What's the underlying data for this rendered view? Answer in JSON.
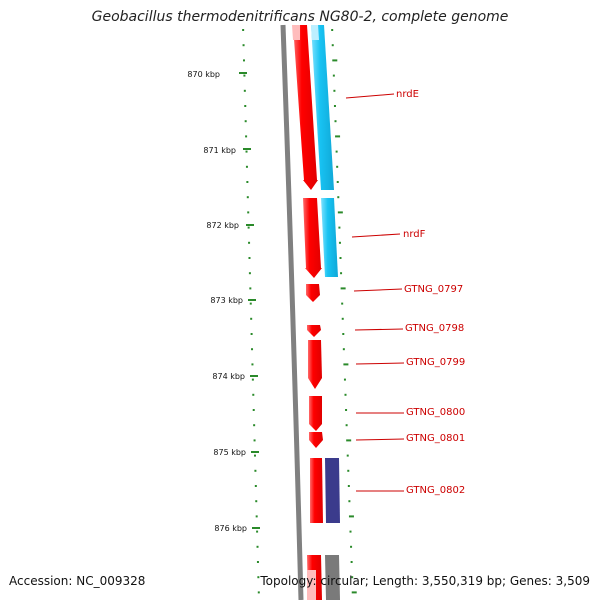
{
  "title": "Geobacillus thermodenitrificans NG80-2, complete genome",
  "accession": "Accession: NC_009328",
  "summary": "Topology: circular; Length: 3,550,319 bp; Genes: 3,509",
  "scale": {
    "unit": "kbp",
    "labels": [
      "870 kbp",
      "871 kbp",
      "872 kbp",
      "873 kbp",
      "874 kbp",
      "875 kbp",
      "876 kbp"
    ]
  },
  "colors": {
    "forward_cds": "#ff1a1a",
    "rna_track": "#1fc8f5",
    "protein_track": "#3b3b8c",
    "gray_track": "#7a7a7a",
    "backbone": "#808080",
    "ticks": "#2a8a2a",
    "labels": "#cc0000"
  },
  "genes": [
    {
      "label": "nrdE"
    },
    {
      "label": "nrdF"
    },
    {
      "label": "GTNG_0797"
    },
    {
      "label": "GTNG_0798"
    },
    {
      "label": "GTNG_0799"
    },
    {
      "label": "GTNG_0800"
    },
    {
      "label": "GTNG_0801"
    },
    {
      "label": "GTNG_0802"
    }
  ]
}
